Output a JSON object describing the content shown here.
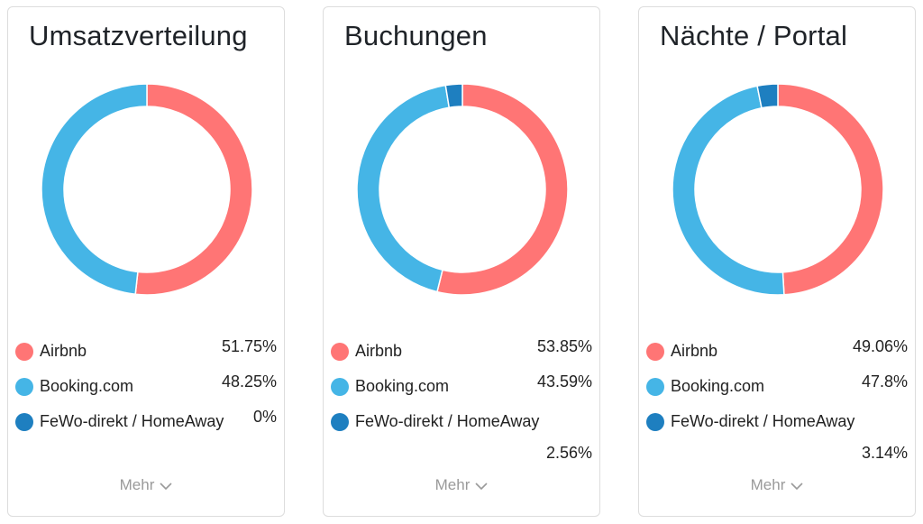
{
  "colors": {
    "airbnb": "#ff7575",
    "booking": "#45b5e6",
    "fewo": "#1e7fc0"
  },
  "more_label": "Mehr",
  "chart_data": [
    {
      "type": "pie",
      "title": "Umsatzverteilung",
      "categories": [
        "Airbnb",
        "Booking.com",
        "FeWo-direkt / HomeAway"
      ],
      "values": [
        51.75,
        48.25,
        0
      ],
      "labels": [
        "51.75%",
        "48.25%",
        "0%"
      ]
    },
    {
      "type": "pie",
      "title": "Buchungen",
      "categories": [
        "Airbnb",
        "Booking.com",
        "FeWo-direkt / HomeAway"
      ],
      "values": [
        53.85,
        43.59,
        2.56
      ],
      "labels": [
        "53.85%",
        "43.59%",
        "2.56%"
      ]
    },
    {
      "type": "pie",
      "title": "Nächte / Portal",
      "categories": [
        "Airbnb",
        "Booking.com",
        "FeWo-direkt / HomeAway"
      ],
      "values": [
        49.06,
        47.8,
        3.14
      ],
      "labels": [
        "49.06%",
        "47.8%",
        "3.14%"
      ]
    }
  ]
}
